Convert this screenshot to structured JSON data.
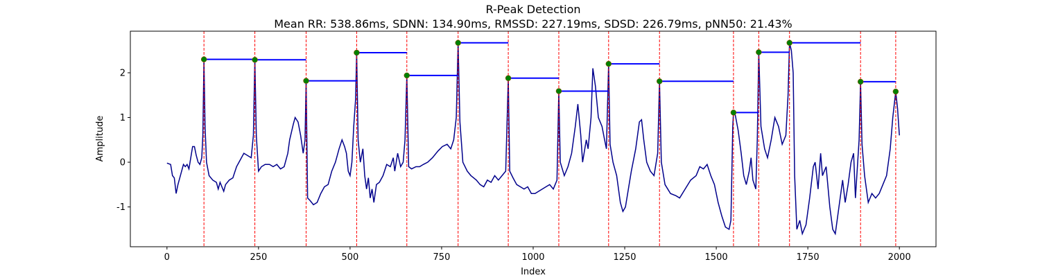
{
  "chart_data": {
    "type": "line",
    "title": "R-Peak Detection",
    "subtitle": "Mean RR: 538.86ms, SDNN: 134.90ms, RMSSD: 227.19ms, SDSD: 226.79ms, pNN50: 21.43%",
    "xlabel": "Index",
    "ylabel": "Amplitude",
    "xlim": [
      -100,
      2100
    ],
    "ylim": [
      -1.89,
      2.93
    ],
    "xticks": [
      0,
      250,
      500,
      750,
      1000,
      1250,
      1500,
      1750,
      2000
    ],
    "yticks": [
      -1,
      0,
      1,
      2
    ],
    "grid": false,
    "peak_line_color": "red",
    "interval_color": "blue",
    "series": [
      {
        "color": "#00008b",
        "x": [
          0,
          10,
          15,
          20,
          25,
          30,
          40,
          45,
          50,
          55,
          60,
          65,
          70,
          75,
          80,
          85,
          90,
          95,
          98,
          101,
          104,
          108,
          115,
          125,
          135,
          140,
          145,
          155,
          160,
          170,
          180,
          190,
          200,
          210,
          220,
          230,
          236,
          240,
          244,
          250,
          258,
          268,
          280,
          290,
          300,
          310,
          320,
          330,
          335,
          345,
          350,
          358,
          365,
          372,
          377,
          380,
          384,
          390,
          400,
          410,
          420,
          430,
          440,
          450,
          460,
          470,
          478,
          485,
          490,
          495,
          500,
          505,
          510,
          515,
          518,
          522,
          528,
          535,
          540,
          545,
          550,
          555,
          560,
          565,
          572,
          580,
          590,
          600,
          610,
          618,
          622,
          630,
          638,
          645,
          650,
          655,
          660,
          668,
          680,
          690,
          700,
          712,
          725,
          740,
          752,
          765,
          775,
          783,
          790,
          795,
          800,
          808,
          820,
          830,
          845,
          855,
          865,
          875,
          885,
          895,
          905,
          915,
          925,
          932,
          936,
          945,
          955,
          965,
          975,
          985,
          995,
          1005,
          1015,
          1025,
          1035,
          1045,
          1055,
          1065,
          1070,
          1074,
          1085,
          1095,
          1105,
          1115,
          1122,
          1130,
          1135,
          1145,
          1150,
          1158,
          1163,
          1170,
          1178,
          1188,
          1195,
          1200,
          1206,
          1210,
          1218,
          1228,
          1238,
          1245,
          1252,
          1260,
          1268,
          1280,
          1290,
          1296,
          1302,
          1310,
          1320,
          1330,
          1340,
          1345,
          1350,
          1360,
          1375,
          1390,
          1400,
          1415,
          1430,
          1445,
          1455,
          1465,
          1475,
          1485,
          1495,
          1505,
          1515,
          1525,
          1535,
          1540,
          1545,
          1547,
          1552,
          1560,
          1568,
          1575,
          1582,
          1590,
          1595,
          1600,
          1608,
          1612,
          1616,
          1622,
          1632,
          1640,
          1650,
          1660,
          1670,
          1680,
          1690,
          1696,
          1700,
          1705,
          1710,
          1714,
          1720,
          1728,
          1735,
          1745,
          1755,
          1765,
          1770,
          1778,
          1785,
          1790,
          1800,
          1810,
          1818,
          1825,
          1835,
          1845,
          1852,
          1860,
          1868,
          1875,
          1880,
          1890,
          1894,
          1898,
          1905,
          1915,
          1925,
          1935,
          1945,
          1955,
          1965,
          1975,
          1982,
          1990,
          1995,
          2000
        ],
        "values": [
          -0.02,
          -0.05,
          -0.3,
          -0.35,
          -0.7,
          -0.5,
          -0.2,
          -0.05,
          -0.1,
          -0.05,
          -0.15,
          0.1,
          0.35,
          0.35,
          0.15,
          0.0,
          -0.05,
          0.1,
          0.6,
          2.3,
          0.8,
          0.0,
          -0.3,
          -0.4,
          -0.45,
          -0.6,
          -0.45,
          -0.65,
          -0.5,
          -0.4,
          -0.35,
          -0.1,
          0.05,
          0.2,
          0.15,
          0.1,
          0.6,
          2.29,
          0.6,
          -0.2,
          -0.1,
          -0.05,
          -0.05,
          -0.1,
          -0.05,
          -0.15,
          -0.1,
          0.2,
          0.5,
          0.85,
          1.0,
          0.9,
          0.6,
          0.2,
          0.5,
          1.82,
          -0.8,
          -0.85,
          -0.95,
          -0.9,
          -0.7,
          -0.55,
          -0.5,
          -0.2,
          0.0,
          0.3,
          0.5,
          0.35,
          0.2,
          -0.2,
          -0.3,
          0.0,
          0.8,
          1.4,
          2.45,
          0.5,
          0.0,
          0.3,
          -0.3,
          -0.6,
          -0.35,
          -0.8,
          -0.6,
          -0.9,
          -0.5,
          -0.45,
          -0.3,
          -0.05,
          -0.1,
          0.1,
          -0.2,
          0.2,
          -0.1,
          0.0,
          0.5,
          1.94,
          -0.1,
          -0.15,
          -0.1,
          -0.1,
          -0.05,
          0.0,
          0.1,
          0.25,
          0.35,
          0.4,
          0.3,
          0.5,
          1.0,
          2.67,
          0.9,
          0.0,
          -0.2,
          -0.3,
          -0.4,
          -0.5,
          -0.55,
          -0.4,
          -0.45,
          -0.3,
          -0.4,
          -0.3,
          -0.2,
          1.88,
          -0.2,
          -0.35,
          -0.5,
          -0.55,
          -0.6,
          -0.55,
          -0.7,
          -0.7,
          -0.65,
          -0.6,
          -0.55,
          -0.5,
          -0.6,
          -0.4,
          1.59,
          0.0,
          -0.3,
          -0.1,
          0.2,
          0.8,
          1.3,
          0.6,
          0.0,
          0.5,
          0.3,
          1.0,
          2.1,
          1.7,
          1.0,
          0.8,
          0.5,
          0.3,
          2.2,
          0.4,
          0.0,
          -0.3,
          -0.9,
          -1.1,
          -1.0,
          -0.6,
          -0.2,
          0.3,
          0.9,
          0.95,
          0.5,
          0.0,
          -0.2,
          -0.3,
          0.2,
          1.81,
          0.0,
          -0.5,
          -0.7,
          -0.75,
          -0.8,
          -0.6,
          -0.4,
          -0.3,
          -0.1,
          -0.15,
          -0.05,
          -0.3,
          -0.5,
          -0.9,
          -1.2,
          -1.45,
          -1.5,
          -1.3,
          0.8,
          1.11,
          1.05,
          0.7,
          0.2,
          -0.3,
          -0.5,
          -0.2,
          0.1,
          -0.4,
          -0.6,
          0.5,
          2.46,
          0.8,
          0.3,
          0.1,
          0.5,
          1.0,
          0.8,
          0.4,
          0.6,
          1.5,
          2.67,
          2.5,
          2.0,
          -0.3,
          -1.5,
          -1.3,
          -1.6,
          -1.4,
          -0.8,
          -0.1,
          0.0,
          -0.6,
          0.2,
          -0.3,
          -0.1,
          -1.0,
          -1.5,
          -1.6,
          -1.0,
          -0.4,
          -0.9,
          -0.5,
          0.0,
          0.2,
          -0.8,
          0.5,
          1.8,
          0.4,
          -0.3,
          -0.9,
          -0.7,
          -0.8,
          -0.7,
          -0.5,
          -0.3,
          0.3,
          1.0,
          1.58,
          1.2,
          0.6
        ]
      },
      {
        "color": "green",
        "marker": "circle",
        "x": [
          101,
          240,
          380,
          518,
          655,
          795,
          932,
          1070,
          1206,
          1345,
          1547,
          1616,
          1700,
          1894,
          1990
        ],
        "values": [
          2.3,
          2.29,
          1.82,
          2.45,
          1.94,
          2.67,
          1.88,
          1.59,
          2.2,
          1.81,
          1.11,
          2.46,
          2.67,
          1.8,
          1.58
        ]
      }
    ]
  }
}
